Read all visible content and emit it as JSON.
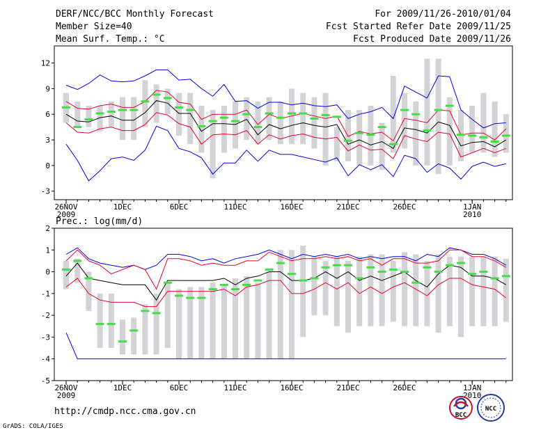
{
  "header": {
    "title": "DERF/NCC/BCC Monthly Forecast",
    "member_size": "Member Size=40",
    "variable": "Mean Surf. Temp.: °C",
    "period": "For 2009/11/26-2010/01/04",
    "fcst_started": "Fcst Started Refer Date 2009/11/25",
    "fcst_produced": "Fcst Produced Date 2009/11/26"
  },
  "footer": {
    "url": "http://cmdp.ncc.cma.gov.cn",
    "grads": "GrADS: COLA/IGES",
    "logo_bcc": "BCC",
    "logo_ncc": "NCC"
  },
  "colors": {
    "box": "#d3d3d7",
    "mean": "#000000",
    "inner": "#e8002a",
    "outer": "#0000e0",
    "obs": "#44dd44",
    "frame": "#000000"
  },
  "chart_data": [
    {
      "type": "line",
      "name": "temperature",
      "title": "Mean Surf. Temp.: °C",
      "ylim": [
        -4,
        14
      ],
      "yticks": [
        -3,
        0,
        3,
        6,
        9,
        12
      ],
      "x_tick_labels": [
        "26NOV",
        "1DEC",
        "6DEC",
        "11DEC",
        "16DEC",
        "21DEC",
        "26DEC",
        "1JAN"
      ],
      "x_tick_days": [
        0,
        5,
        10,
        15,
        20,
        25,
        30,
        36
      ],
      "x_sub_labels": [
        {
          "day": 0,
          "text": "2009"
        },
        {
          "day": 36,
          "text": "2010"
        }
      ],
      "box_low": [
        5.0,
        4.5,
        4.5,
        4.0,
        4.5,
        3.0,
        3.0,
        4.5,
        5.0,
        6.0,
        3.5,
        2.5,
        1.5,
        -1.5,
        1.5,
        2.0,
        3.0,
        2.5,
        3.0,
        2.5,
        2.5,
        2.5,
        2.0,
        0.0,
        0.5,
        0.5,
        0.0,
        0.0,
        -0.5,
        1.5,
        2.0,
        0.0,
        0.0,
        -1.0,
        0.0,
        0.5,
        1.5,
        1.5,
        1.0,
        1.5
      ],
      "box_high": [
        8.5,
        7.5,
        7.0,
        7.0,
        7.5,
        8.0,
        8.0,
        10.0,
        9.5,
        9.0,
        8.5,
        8.5,
        7.0,
        6.5,
        7.0,
        7.5,
        8.0,
        7.5,
        8.0,
        7.5,
        9.0,
        8.5,
        8.0,
        8.5,
        4.5,
        6.5,
        6.5,
        7.0,
        5.0,
        10.5,
        8.5,
        7.5,
        12.5,
        12.5,
        8.0,
        6.5,
        7.0,
        8.5,
        7.5,
        6.0
      ],
      "mean": [
        6.0,
        5.2,
        5.1,
        5.6,
        5.8,
        5.3,
        5.3,
        6.2,
        7.6,
        7.3,
        6.1,
        6.1,
        4.0,
        4.9,
        4.9,
        4.8,
        5.4,
        3.6,
        4.8,
        4.3,
        4.7,
        5.0,
        4.7,
        4.5,
        4.8,
        2.5,
        3.0,
        2.4,
        2.8,
        2.0,
        4.4,
        4.2,
        3.8,
        5.1,
        4.7,
        2.3,
        2.7,
        2.8,
        2.2,
        3.0
      ],
      "inner_high": [
        7.5,
        6.7,
        6.6,
        7.0,
        7.2,
        6.8,
        6.8,
        7.5,
        8.8,
        8.6,
        7.4,
        7.2,
        5.4,
        6.0,
        6.0,
        6.0,
        6.5,
        4.8,
        6.0,
        5.5,
        5.8,
        6.1,
        5.8,
        5.5,
        5.8,
        3.4,
        4.0,
        3.7,
        3.9,
        2.9,
        5.5,
        5.3,
        5.0,
        6.5,
        6.4,
        3.6,
        3.8,
        3.8,
        3.0,
        4.3
      ],
      "inner_low": [
        5.0,
        3.9,
        3.8,
        4.3,
        4.5,
        4.1,
        4.1,
        4.8,
        6.2,
        5.9,
        4.9,
        4.5,
        2.5,
        3.6,
        3.7,
        3.6,
        4.1,
        2.5,
        3.6,
        3.1,
        3.5,
        3.7,
        3.3,
        3.1,
        3.3,
        1.7,
        2.4,
        1.8,
        1.9,
        0.8,
        3.5,
        3.1,
        2.8,
        3.9,
        3.7,
        1.0,
        1.5,
        2.0,
        1.5,
        2.0
      ],
      "outer_high": [
        9.4,
        8.9,
        9.6,
        10.6,
        9.9,
        9.8,
        9.9,
        10.5,
        11.2,
        11.2,
        10.0,
        10.1,
        9.0,
        8.1,
        9.5,
        7.5,
        7.6,
        6.7,
        7.4,
        7.4,
        7.1,
        7.3,
        7.0,
        6.9,
        7.1,
        5.5,
        6.0,
        6.3,
        6.8,
        5.5,
        9.3,
        8.6,
        7.9,
        10.5,
        10.4,
        6.5,
        5.4,
        4.4,
        4.9,
        5.0
      ],
      "outer_low": [
        2.5,
        0.6,
        -1.8,
        -0.6,
        0.8,
        1.0,
        0.6,
        1.8,
        4.6,
        4.1,
        2.0,
        1.6,
        0.9,
        -1.0,
        0.3,
        0.3,
        1.8,
        0.5,
        1.8,
        1.3,
        1.3,
        1.0,
        0.7,
        0.4,
        0.9,
        -1.2,
        0.1,
        -0.5,
        0.1,
        -1.3,
        1.2,
        0.8,
        -0.8,
        0.2,
        -0.3,
        -1.6,
        -0.1,
        0.4,
        -0.1,
        0.2
      ],
      "obs": [
        6.8,
        4.5,
        5.4,
        6.1,
        6.3,
        6.5,
        6.5,
        7.5,
        8.3,
        7.9,
        6.8,
        6.5,
        4.6,
        5.2,
        5.6,
        5.2,
        6.0,
        4.5,
        6.1,
        5.6,
        6.1,
        6.1,
        5.5,
        5.9,
        5.7,
        2.9,
        3.8,
        3.6,
        4.5,
        2.5,
        6.5,
        6.0,
        4.1,
        6.5,
        7.0,
        3.6,
        3.5,
        3.3,
        2.8,
        3.5
      ]
    },
    {
      "type": "line",
      "name": "precipitation",
      "title": "Prec.: log(mm/d)",
      "ylim": [
        -5,
        2
      ],
      "yticks": [
        -5,
        -4,
        -3,
        -2,
        -1,
        0,
        1,
        2
      ],
      "x_tick_labels": [
        "26NOV",
        "1DEC",
        "6DEC",
        "11DEC",
        "16DEC",
        "21DEC",
        "26DEC",
        "1JAN"
      ],
      "x_tick_days": [
        0,
        5,
        10,
        15,
        20,
        25,
        30,
        36
      ],
      "x_sub_labels": [
        {
          "day": 0,
          "text": "2009"
        },
        {
          "day": 36,
          "text": "2010"
        }
      ],
      "box_low": [
        -0.8,
        -0.5,
        -1.8,
        -3.5,
        -3.5,
        -3.8,
        -3.8,
        -3.8,
        -3.8,
        -3.5,
        -4.0,
        -4.0,
        -4.0,
        -4.0,
        -4.0,
        -4.0,
        -4.0,
        -4.0,
        -4.0,
        -4.0,
        -4.0,
        -3.0,
        -2.0,
        -2.0,
        -2.5,
        -2.8,
        -2.5,
        -2.5,
        -2.5,
        -2.3,
        -2.5,
        -2.5,
        -2.5,
        -2.8,
        -2.5,
        -3.0,
        -2.5,
        -2.5,
        -2.5,
        -2.3
      ],
      "box_high": [
        0.5,
        0.6,
        0.0,
        -1.0,
        -1.0,
        -2.2,
        -2.1,
        -1.5,
        -1.0,
        -0.5,
        -0.8,
        -0.7,
        -0.7,
        -0.5,
        -0.6,
        -0.3,
        -0.2,
        -0.5,
        0.0,
        1.0,
        1.0,
        1.2,
        0.7,
        0.5,
        0.7,
        0.5,
        0.7,
        0.8,
        0.8,
        0.5,
        0.9,
        0.8,
        0.5,
        0.8,
        0.7,
        0.7,
        0.7,
        0.7,
        0.7,
        0.6
      ],
      "mean": [
        -0.2,
        0.4,
        -0.3,
        -0.4,
        -0.5,
        -0.6,
        -0.6,
        -0.6,
        -1.3,
        -0.4,
        -0.4,
        -0.4,
        -0.4,
        -0.4,
        -0.3,
        -0.6,
        -0.3,
        -0.2,
        0.0,
        0.0,
        -0.4,
        -0.4,
        -0.3,
        0.0,
        -0.3,
        0.0,
        -0.4,
        -0.2,
        -0.4,
        -0.2,
        0.0,
        -0.4,
        -0.7,
        -0.1,
        0.3,
        0.2,
        -0.2,
        -0.2,
        -0.3,
        -0.6
      ],
      "inner_high": [
        0.5,
        1.0,
        0.5,
        0.3,
        -0.1,
        0.1,
        0.3,
        0.1,
        -0.8,
        0.6,
        0.6,
        0.5,
        0.3,
        0.4,
        0.3,
        0.3,
        0.5,
        0.5,
        0.9,
        0.7,
        0.5,
        0.6,
        0.6,
        0.7,
        0.6,
        0.7,
        0.5,
        0.6,
        0.3,
        0.6,
        0.6,
        0.4,
        0.4,
        0.5,
        1.0,
        1.0,
        0.7,
        0.7,
        0.5,
        0.2
      ],
      "inner_low": [
        -0.7,
        -0.3,
        -1.0,
        -1.3,
        -1.4,
        -1.4,
        -1.4,
        -1.6,
        -1.6,
        -0.9,
        -0.9,
        -0.9,
        -0.9,
        -0.9,
        -0.8,
        -1.1,
        -0.7,
        -0.6,
        -0.4,
        -0.4,
        -1.0,
        -1.0,
        -0.8,
        -0.5,
        -0.8,
        -0.5,
        -1.0,
        -0.7,
        -1.0,
        -0.7,
        -0.5,
        -0.8,
        -1.1,
        -0.6,
        -0.3,
        -0.3,
        -0.6,
        -0.7,
        -0.8,
        -1.2
      ],
      "outer_high": [
        0.8,
        1.1,
        0.6,
        0.4,
        0.3,
        0.2,
        0.3,
        0.1,
        0.3,
        0.8,
        0.8,
        0.7,
        0.5,
        0.6,
        0.4,
        0.6,
        0.7,
        0.8,
        1.0,
        0.8,
        0.6,
        0.8,
        0.7,
        0.8,
        0.7,
        0.8,
        0.6,
        0.7,
        0.6,
        0.7,
        0.7,
        0.5,
        0.8,
        0.7,
        1.1,
        1.0,
        0.8,
        0.8,
        0.6,
        0.3
      ],
      "outer_low": [
        -2.8,
        -4.0,
        -4.0,
        -4.0,
        -4.0,
        -4.0,
        -4.0,
        -4.0,
        -4.0,
        -4.0,
        -4.0,
        -4.0,
        -4.0,
        -4.0,
        -4.0,
        -4.0,
        -4.0,
        -4.0,
        -4.0,
        -4.0,
        -4.0,
        -4.0,
        -4.0,
        -4.0,
        -4.0,
        -4.0,
        -4.0,
        -4.0,
        -4.0,
        -4.0,
        -4.0,
        -4.0,
        -4.0,
        -4.0,
        -4.0,
        -4.0,
        -4.0,
        -4.0,
        -4.0,
        -4.0
      ],
      "obs": [
        0.1,
        0.5,
        -0.3,
        -2.4,
        -2.4,
        -3.2,
        -2.7,
        -1.8,
        -1.9,
        -0.5,
        -1.1,
        -1.2,
        -1.2,
        -0.8,
        -0.6,
        -0.8,
        -0.6,
        -0.4,
        0.1,
        0.4,
        -0.1,
        -0.4,
        -0.3,
        0.2,
        0.3,
        0.3,
        -0.3,
        0.2,
        0.0,
        0.1,
        0.0,
        -0.5,
        0.2,
        0.0,
        0.3,
        0.4,
        -0.1,
        0.0,
        -0.3,
        -0.2
      ]
    }
  ]
}
